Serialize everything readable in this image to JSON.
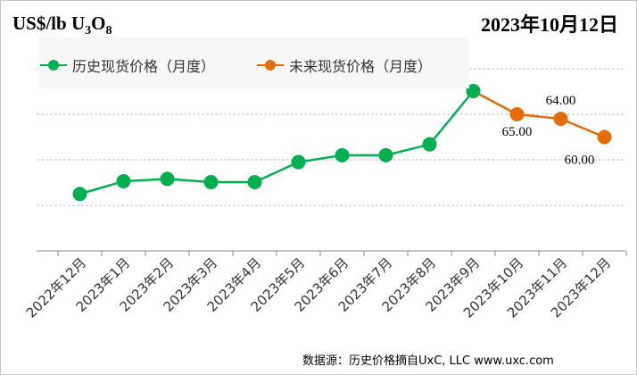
{
  "header": {
    "unit_main": "US$/lb U",
    "unit_sub1": "3",
    "unit_mid": "O",
    "unit_sub2": "8",
    "date": "2023年10月12日"
  },
  "footer": {
    "source": "数据源：历史价格摘自UxC, LLC  www.uxc.com"
  },
  "chart_data": {
    "type": "line",
    "categories": [
      "2022年12月",
      "2023年1月",
      "2023年2月",
      "2023年3月",
      "2023年4月",
      "2023年5月",
      "2023年6月",
      "2023年7月",
      "2023年8月",
      "2023年9月",
      "2023年10月",
      "2023年11月",
      "2023年12月"
    ],
    "series": [
      {
        "name": "历史现货价格（月度）",
        "color": "#00b050",
        "values": [
          47.5,
          50.3,
          50.8,
          50.1,
          50.1,
          54.5,
          56.0,
          56.0,
          58.4,
          70.1,
          null,
          null,
          null
        ]
      },
      {
        "name": "未来现货价格（月度）",
        "color": "#e46c0a",
        "values": [
          null,
          null,
          null,
          null,
          null,
          null,
          null,
          null,
          null,
          70.1,
          65.0,
          64.0,
          60.0
        ]
      }
    ],
    "data_labels": [
      {
        "index": 10,
        "text": "65.00"
      },
      {
        "index": 11,
        "text": "64.00"
      },
      {
        "index": 12,
        "text": "60.00"
      }
    ],
    "ylim": [
      35,
      85
    ],
    "grid": true,
    "legend": "top-left"
  }
}
